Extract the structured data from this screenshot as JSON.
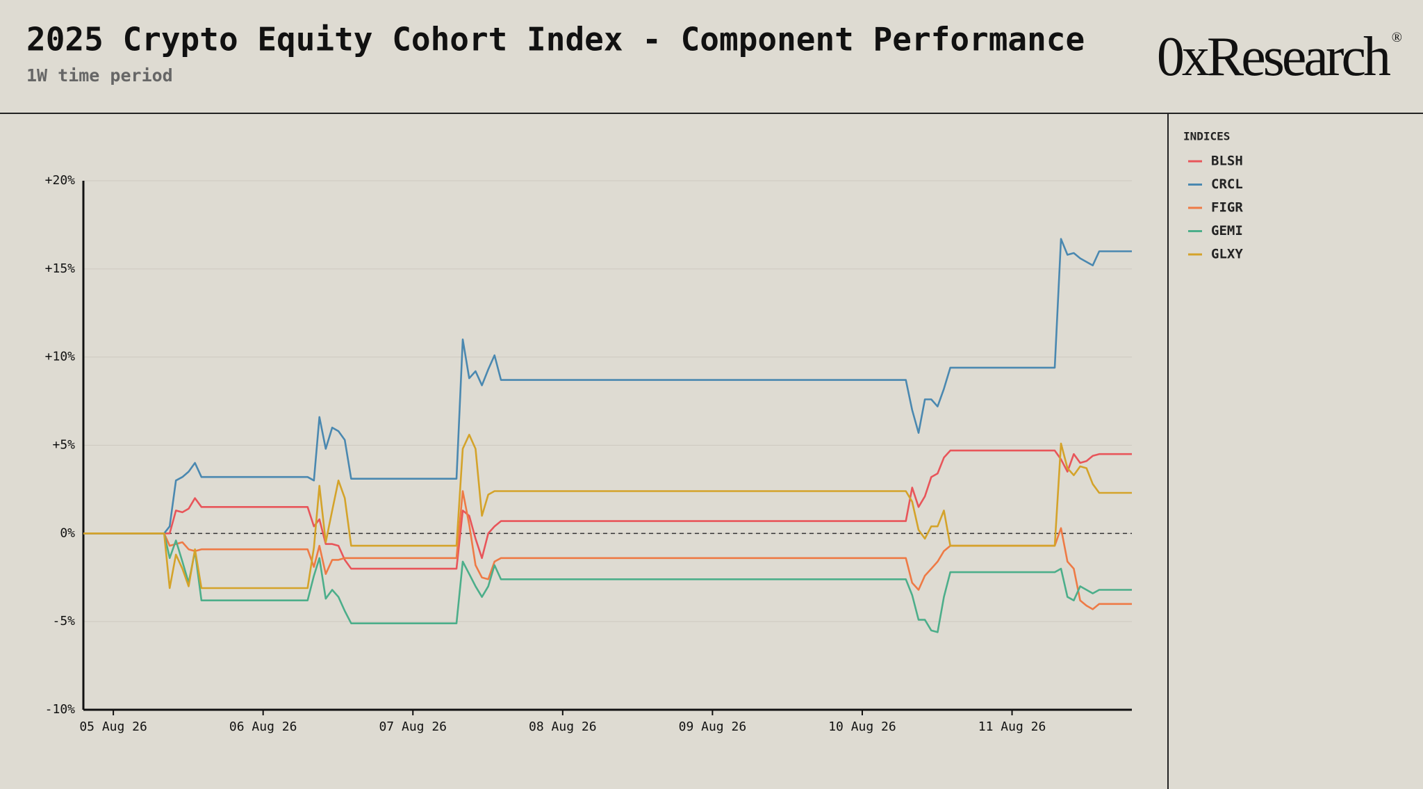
{
  "chart_data": {
    "type": "line",
    "title": "2025 Crypto Equity Cohort Index - Component Performance",
    "subtitle": "1W time period",
    "logo": "0xResearch",
    "logo_mark": "®",
    "legend_title": "INDICES",
    "legend_position": "right",
    "grid": true,
    "x": [
      -0.2,
      0.339,
      0.376,
      0.418,
      0.461,
      0.503,
      0.545,
      0.588,
      1.297,
      1.339,
      1.376,
      1.418,
      1.461,
      1.503,
      1.545,
      1.588,
      2.291,
      2.333,
      2.376,
      2.418,
      2.461,
      2.503,
      2.545,
      2.588,
      5.291,
      5.333,
      5.376,
      5.418,
      5.461,
      5.503,
      5.545,
      5.588,
      6.285,
      6.327,
      6.37,
      6.412,
      6.455,
      6.497,
      6.539,
      6.582,
      6.8
    ],
    "xlim": [
      -0.2,
      6.8
    ],
    "xticks": [
      {
        "value": 0,
        "label": "05 Aug 26"
      },
      {
        "value": 1,
        "label": "06 Aug 26"
      },
      {
        "value": 2,
        "label": "07 Aug 26"
      },
      {
        "value": 3,
        "label": "08 Aug 26"
      },
      {
        "value": 4,
        "label": "09 Aug 26"
      },
      {
        "value": 5,
        "label": "10 Aug 26"
      },
      {
        "value": 6,
        "label": "11 Aug 26"
      }
    ],
    "ylim": [
      -10,
      20
    ],
    "yticks": [
      {
        "value": -10,
        "label": "-10%"
      },
      {
        "value": -5,
        "label": "-5%"
      },
      {
        "value": 0,
        "label": "0%"
      },
      {
        "value": 5,
        "label": "+5%"
      },
      {
        "value": 10,
        "label": "+10%"
      },
      {
        "value": 15,
        "label": "+15%"
      },
      {
        "value": 20,
        "label": "+20%"
      }
    ],
    "series": [
      {
        "name": "BLSH",
        "color": "#e8555a",
        "values": [
          0,
          0,
          0,
          1.3,
          1.2,
          1.4,
          2.0,
          1.5,
          1.5,
          0.4,
          0.8,
          -0.6,
          -0.6,
          -0.7,
          -1.5,
          -2.0,
          -2.0,
          1.3,
          1.0,
          -0.3,
          -1.4,
          0.0,
          0.4,
          0.7,
          0.7,
          2.6,
          1.5,
          2.1,
          3.2,
          3.4,
          4.3,
          4.7,
          4.7,
          4.2,
          3.5,
          4.5,
          4.0,
          4.1,
          4.4,
          4.5,
          4.5
        ]
      },
      {
        "name": "CRCL",
        "color": "#4a88b0",
        "values": [
          0,
          0,
          0.4,
          3.0,
          3.2,
          3.5,
          4.0,
          3.2,
          3.2,
          3.0,
          6.6,
          4.8,
          6.0,
          5.8,
          5.3,
          3.1,
          3.1,
          11.0,
          8.8,
          9.2,
          8.4,
          9.3,
          10.1,
          8.7,
          8.7,
          7.0,
          5.7,
          7.6,
          7.6,
          7.2,
          8.2,
          9.4,
          9.4,
          16.7,
          15.8,
          15.9,
          15.6,
          15.4,
          15.2,
          16.0,
          16.0
        ]
      },
      {
        "name": "FIGR",
        "color": "#ee7a45",
        "values": [
          0,
          0,
          -0.7,
          -0.6,
          -0.5,
          -0.9,
          -1.0,
          -0.9,
          -0.9,
          -1.9,
          -0.7,
          -2.3,
          -1.5,
          -1.5,
          -1.4,
          -1.4,
          -1.4,
          2.4,
          0.5,
          -1.8,
          -2.5,
          -2.6,
          -1.6,
          -1.4,
          -1.4,
          -2.8,
          -3.2,
          -2.4,
          -2.0,
          -1.6,
          -1.0,
          -0.7,
          -0.7,
          0.3,
          -1.6,
          -2.0,
          -3.8,
          -4.1,
          -4.3,
          -4.0,
          -4.0
        ]
      },
      {
        "name": "GEMI",
        "color": "#4cae8a",
        "values": [
          0,
          0,
          -1.4,
          -0.4,
          -1.6,
          -2.8,
          -1.0,
          -3.8,
          -3.8,
          -2.4,
          -1.4,
          -3.7,
          -3.2,
          -3.6,
          -4.4,
          -5.1,
          -5.1,
          -1.6,
          -2.3,
          -3.0,
          -3.6,
          -3.0,
          -1.8,
          -2.6,
          -2.6,
          -3.5,
          -4.9,
          -4.9,
          -5.5,
          -5.6,
          -3.6,
          -2.2,
          -2.2,
          -2.0,
          -3.6,
          -3.8,
          -3.0,
          -3.2,
          -3.4,
          -3.2,
          -3.2
        ]
      },
      {
        "name": "GLXY",
        "color": "#d4a32a",
        "values": [
          0,
          0,
          -3.1,
          -1.2,
          -2.0,
          -3.0,
          -0.9,
          -3.1,
          -3.1,
          -0.8,
          2.7,
          -0.5,
          1.3,
          3.0,
          2.0,
          -0.7,
          -0.7,
          4.8,
          5.6,
          4.8,
          1.0,
          2.2,
          2.4,
          2.4,
          2.4,
          1.8,
          0.2,
          -0.3,
          0.4,
          0.4,
          1.3,
          -0.7,
          -0.7,
          5.1,
          3.7,
          3.3,
          3.8,
          3.7,
          2.8,
          2.3,
          2.3
        ]
      }
    ]
  }
}
